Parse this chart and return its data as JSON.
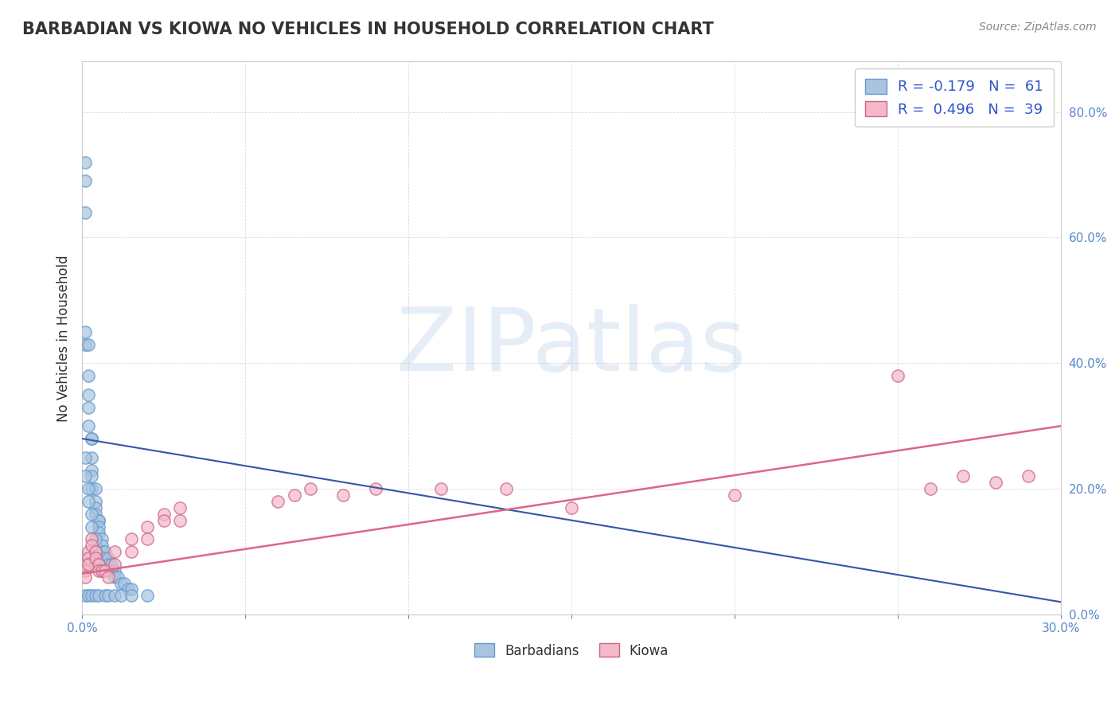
{
  "title": "BARBADIAN VS KIOWA NO VEHICLES IN HOUSEHOLD CORRELATION CHART",
  "source": "Source: ZipAtlas.com",
  "ylabel": "No Vehicles in Household",
  "xlim": [
    0.0,
    0.3
  ],
  "ylim": [
    0.0,
    0.88
  ],
  "barbadian_color": "#a8c4e0",
  "barbadian_edge": "#6699cc",
  "kiowa_color": "#f4b8c8",
  "kiowa_edge": "#cc6688",
  "barbadian_line_color": "#3355aa",
  "kiowa_line_color": "#dd6688",
  "barb_line_start_y": 0.28,
  "barb_line_end_y": 0.02,
  "kiowa_line_start_y": 0.065,
  "kiowa_line_end_y": 0.3,
  "barbadian_x": [
    0.001,
    0.001,
    0.001,
    0.001,
    0.001,
    0.002,
    0.002,
    0.002,
    0.002,
    0.002,
    0.003,
    0.003,
    0.003,
    0.003,
    0.003,
    0.003,
    0.004,
    0.004,
    0.004,
    0.004,
    0.005,
    0.005,
    0.005,
    0.005,
    0.006,
    0.006,
    0.006,
    0.007,
    0.007,
    0.008,
    0.008,
    0.009,
    0.009,
    0.01,
    0.01,
    0.011,
    0.012,
    0.013,
    0.014,
    0.015,
    0.001,
    0.001,
    0.002,
    0.002,
    0.003,
    0.003,
    0.004,
    0.004,
    0.005,
    0.006,
    0.001,
    0.002,
    0.003,
    0.004,
    0.005,
    0.007,
    0.008,
    0.01,
    0.012,
    0.015,
    0.02
  ],
  "barbadian_y": [
    0.72,
    0.69,
    0.64,
    0.45,
    0.43,
    0.43,
    0.38,
    0.35,
    0.33,
    0.3,
    0.28,
    0.28,
    0.25,
    0.23,
    0.22,
    0.2,
    0.2,
    0.18,
    0.17,
    0.16,
    0.15,
    0.15,
    0.14,
    0.13,
    0.12,
    0.11,
    0.1,
    0.1,
    0.09,
    0.09,
    0.08,
    0.08,
    0.07,
    0.07,
    0.06,
    0.06,
    0.05,
    0.05,
    0.04,
    0.04,
    0.25,
    0.22,
    0.2,
    0.18,
    0.16,
    0.14,
    0.12,
    0.1,
    0.08,
    0.07,
    0.03,
    0.03,
    0.03,
    0.03,
    0.03,
    0.03,
    0.03,
    0.03,
    0.03,
    0.03,
    0.03
  ],
  "kiowa_x": [
    0.001,
    0.001,
    0.001,
    0.002,
    0.002,
    0.002,
    0.003,
    0.003,
    0.004,
    0.004,
    0.005,
    0.005,
    0.006,
    0.007,
    0.008,
    0.01,
    0.01,
    0.015,
    0.015,
    0.02,
    0.02,
    0.025,
    0.025,
    0.03,
    0.03,
    0.06,
    0.065,
    0.07,
    0.08,
    0.09,
    0.11,
    0.13,
    0.15,
    0.2,
    0.25,
    0.26,
    0.27,
    0.28,
    0.29
  ],
  "kiowa_y": [
    0.08,
    0.07,
    0.06,
    0.1,
    0.09,
    0.08,
    0.12,
    0.11,
    0.1,
    0.09,
    0.08,
    0.07,
    0.07,
    0.07,
    0.06,
    0.1,
    0.08,
    0.12,
    0.1,
    0.14,
    0.12,
    0.16,
    0.15,
    0.17,
    0.15,
    0.18,
    0.19,
    0.2,
    0.19,
    0.2,
    0.2,
    0.2,
    0.17,
    0.19,
    0.38,
    0.2,
    0.22,
    0.21,
    0.22
  ]
}
